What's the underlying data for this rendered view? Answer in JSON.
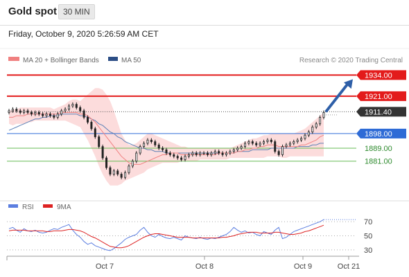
{
  "header": {
    "title": "Gold spot",
    "interval": "30 MIN",
    "datetime": "Friday, October 9, 2020 5:26:59 AM CET"
  },
  "legend": {
    "ma20": "MA 20 + Bollinger Bands",
    "ma50": "MA 50",
    "credit": "Research © 2020 Trading Central",
    "rsi": "RSI",
    "ma9": "9MA"
  },
  "colors": {
    "red": "#e31b1b",
    "blue": "#2e6bd6",
    "green": "#66bb55",
    "candle": "#222222",
    "band": "#fbd6d6",
    "ma20": "#f08080",
    "ma50": "#5b7fb5",
    "arrow": "#2e5fa8",
    "rsi": "#5b7ee0",
    "ma9": "#dd2222"
  },
  "chart_data": [
    {
      "type": "line",
      "subtype": "candlestick",
      "title": "Gold spot",
      "x_ticks": [
        "Oct 7",
        "Oct 8",
        "Oct 9",
        "Oct 21"
      ],
      "ylim": [
        1860,
        1941
      ],
      "levels": [
        {
          "value": 1934.0,
          "label": "1934.00",
          "color": "#e31b1b",
          "kind": "resistance"
        },
        {
          "value": 1921.0,
          "label": "1921.00",
          "color": "#e31b1b",
          "kind": "resistance"
        },
        {
          "value": 1911.4,
          "label": "1911.40",
          "color": "#333333",
          "kind": "last-price"
        },
        {
          "value": 1898.0,
          "label": "1898.00",
          "color": "#2e6bd6",
          "kind": "pivot"
        },
        {
          "value": 1889.0,
          "label": "1889.00",
          "color": "#66bb55",
          "kind": "support"
        },
        {
          "value": 1881.0,
          "label": "1881.00",
          "color": "#66bb55",
          "kind": "support"
        }
      ],
      "closes": [
        1912,
        1913,
        1912,
        1911,
        1912,
        1911,
        1910,
        1911,
        1910,
        1909,
        1910,
        1909,
        1908,
        1910,
        1912,
        1913,
        1915,
        1916,
        1914,
        1912,
        1908,
        1905,
        1901,
        1896,
        1890,
        1883,
        1877,
        1873,
        1875,
        1873,
        1871,
        1874,
        1878,
        1881,
        1886,
        1890,
        1892,
        1894,
        1893,
        1891,
        1889,
        1888,
        1886,
        1885,
        1884,
        1883,
        1882,
        1884,
        1885,
        1886,
        1885,
        1886,
        1886,
        1885,
        1886,
        1887,
        1886,
        1885,
        1886,
        1887,
        1888,
        1889,
        1890,
        1892,
        1893,
        1892,
        1891,
        1892,
        1893,
        1894,
        1893,
        1887,
        1885,
        1890,
        1891,
        1892,
        1893,
        1894,
        1895,
        1897,
        1899,
        1902,
        1904,
        1908,
        1911
      ],
      "ma20": [
        1908,
        1908,
        1909,
        1909,
        1909,
        1910,
        1910,
        1910,
        1910,
        1910,
        1910,
        1910,
        1910,
        1910,
        1911,
        1911,
        1911,
        1911,
        1911,
        1910,
        1910,
        1909,
        1907,
        1905,
        1902,
        1899,
        1896,
        1893,
        1890,
        1887,
        1884,
        1882,
        1880,
        1879,
        1879,
        1879,
        1880,
        1881,
        1882,
        1883,
        1884,
        1885,
        1885,
        1886,
        1886,
        1886,
        1885,
        1885,
        1885,
        1885,
        1885,
        1885,
        1885,
        1885,
        1885,
        1885,
        1886,
        1886,
        1886,
        1886,
        1886,
        1887,
        1887,
        1888,
        1888,
        1889,
        1889,
        1890,
        1890,
        1891,
        1891,
        1891,
        1890,
        1890,
        1890,
        1890,
        1890,
        1890,
        1891,
        1891,
        1892,
        1893,
        1894,
        1896,
        1897
      ],
      "ma50": [
        1900,
        1901,
        1902,
        1903,
        1904,
        1905,
        1906,
        1907,
        1907,
        1908,
        1908,
        1909,
        1909,
        1909,
        1910,
        1910,
        1910,
        1910,
        1910,
        1909,
        1909,
        1908,
        1907,
        1906,
        1904,
        1903,
        1901,
        1899,
        1898,
        1896,
        1895,
        1893,
        1892,
        1891,
        1890,
        1889,
        1889,
        1888,
        1888,
        1887,
        1887,
        1887,
        1886,
        1886,
        1886,
        1886,
        1886,
        1886,
        1886,
        1886,
        1886,
        1886,
        1886,
        1886,
        1886,
        1886,
        1886,
        1886,
        1886,
        1886,
        1886,
        1887,
        1887,
        1887,
        1887,
        1888,
        1888,
        1888,
        1888,
        1888,
        1889,
        1889,
        1889,
        1889,
        1889,
        1889,
        1889,
        1890,
        1890,
        1890,
        1890,
        1891,
        1891,
        1892,
        1892
      ],
      "band_upper": [
        1912,
        1913,
        1913,
        1914,
        1914,
        1914,
        1914,
        1914,
        1914,
        1914,
        1914,
        1914,
        1913,
        1914,
        1915,
        1916,
        1918,
        1919,
        1919,
        1918,
        1920,
        1922,
        1924,
        1926,
        1926,
        1925,
        1922,
        1918,
        1912,
        1905,
        1898,
        1894,
        1891,
        1891,
        1892,
        1894,
        1896,
        1898,
        1898,
        1897,
        1896,
        1895,
        1894,
        1893,
        1892,
        1891,
        1890,
        1890,
        1889,
        1889,
        1889,
        1889,
        1889,
        1889,
        1889,
        1889,
        1889,
        1889,
        1889,
        1889,
        1890,
        1891,
        1892,
        1893,
        1894,
        1895,
        1895,
        1896,
        1897,
        1897,
        1898,
        1898,
        1898,
        1898,
        1898,
        1898,
        1898,
        1899,
        1900,
        1901,
        1903,
        1905,
        1907,
        1909,
        1911
      ],
      "band_lower": [
        1904,
        1903,
        1904,
        1904,
        1904,
        1905,
        1905,
        1906,
        1906,
        1906,
        1906,
        1906,
        1906,
        1906,
        1906,
        1906,
        1905,
        1904,
        1903,
        1902,
        1898,
        1894,
        1889,
        1884,
        1878,
        1873,
        1869,
        1866,
        1866,
        1866,
        1867,
        1869,
        1870,
        1871,
        1872,
        1873,
        1874,
        1876,
        1877,
        1878,
        1879,
        1880,
        1880,
        1880,
        1880,
        1880,
        1881,
        1881,
        1881,
        1881,
        1881,
        1882,
        1882,
        1882,
        1882,
        1882,
        1882,
        1882,
        1882,
        1883,
        1883,
        1883,
        1883,
        1883,
        1883,
        1883,
        1883,
        1883,
        1883,
        1884,
        1884,
        1884,
        1884,
        1883,
        1883,
        1884,
        1884,
        1884,
        1884,
        1884,
        1884,
        1884,
        1884,
        1884,
        1884
      ],
      "projection": {
        "from": 1911.4,
        "to": 1934.0
      }
    },
    {
      "type": "line",
      "title": "RSI",
      "ylim": [
        25,
        78
      ],
      "y_ticks": [
        30,
        50,
        70
      ],
      "series": [
        {
          "name": "RSI",
          "color": "#5b7ee0",
          "values": [
            60,
            62,
            58,
            55,
            60,
            57,
            56,
            58,
            55,
            54,
            55,
            58,
            60,
            59,
            62,
            64,
            66,
            58,
            52,
            48,
            42,
            38,
            40,
            36,
            34,
            32,
            30,
            29,
            32,
            36,
            40,
            45,
            48,
            50,
            52,
            58,
            62,
            55,
            50,
            48,
            52,
            49,
            47,
            46,
            48,
            46,
            44,
            50,
            48,
            47,
            46,
            48,
            46,
            45,
            47,
            46,
            48,
            50,
            52,
            56,
            62,
            58,
            55,
            57,
            54,
            55,
            52,
            50,
            56,
            54,
            52,
            58,
            62,
            46,
            48,
            52,
            56,
            58,
            60,
            62,
            64,
            66,
            68,
            70,
            73
          ]
        },
        {
          "name": "9MA",
          "color": "#dd2222",
          "values": [
            57,
            58,
            58,
            58,
            58,
            57,
            57,
            57,
            57,
            57,
            56,
            56,
            57,
            57,
            57,
            58,
            59,
            59,
            58,
            57,
            55,
            52,
            49,
            47,
            44,
            41,
            38,
            35,
            34,
            33,
            33,
            34,
            36,
            39,
            42,
            45,
            48,
            50,
            52,
            53,
            53,
            52,
            51,
            50,
            49,
            48,
            48,
            48,
            48,
            47,
            47,
            47,
            47,
            47,
            47,
            47,
            47,
            48,
            48,
            49,
            50,
            52,
            53,
            54,
            55,
            55,
            55,
            54,
            54,
            54,
            54,
            55,
            55,
            54,
            53,
            52,
            52,
            53,
            54,
            56,
            57,
            59,
            61,
            63,
            65
          ]
        }
      ]
    }
  ]
}
